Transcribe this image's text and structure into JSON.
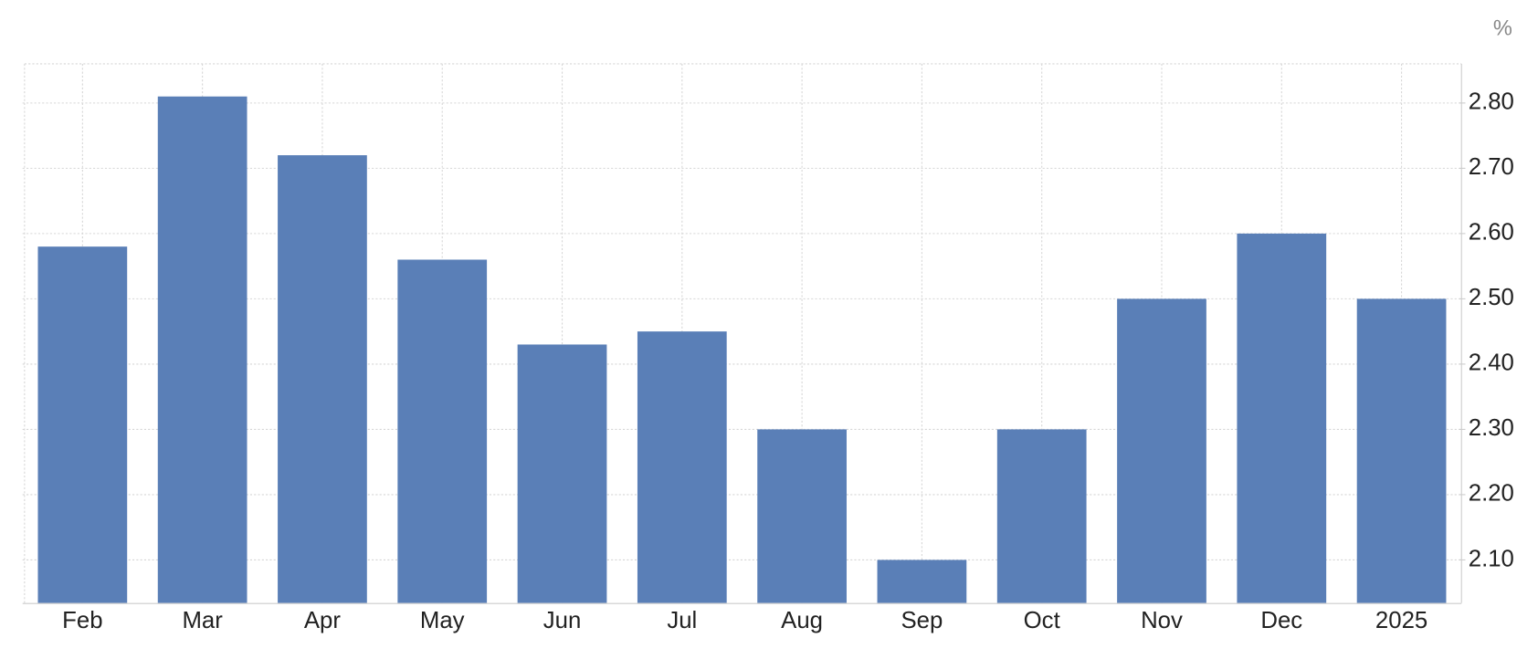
{
  "chart_data": {
    "type": "bar",
    "unit": "%",
    "categories": [
      "Feb",
      "Mar",
      "Apr",
      "May",
      "Jun",
      "Jul",
      "Aug",
      "Sep",
      "Oct",
      "Nov",
      "Dec",
      "2025"
    ],
    "values": [
      2.58,
      2.81,
      2.72,
      2.56,
      2.43,
      2.45,
      2.3,
      2.1,
      2.3,
      2.5,
      2.6,
      2.5
    ],
    "color": "#5a7fb7",
    "ylim": [
      2.034,
      2.86
    ],
    "yticks": [
      {
        "value": 2.1,
        "label": "2.10"
      },
      {
        "value": 2.2,
        "label": "2.20"
      },
      {
        "value": 2.3,
        "label": "2.30"
      },
      {
        "value": 2.4,
        "label": "2.40"
      },
      {
        "value": 2.5,
        "label": "2.50"
      },
      {
        "value": 2.6,
        "label": "2.60"
      },
      {
        "value": 2.7,
        "label": "2.70"
      },
      {
        "value": 2.8,
        "label": "2.80"
      }
    ],
    "grid": true
  }
}
